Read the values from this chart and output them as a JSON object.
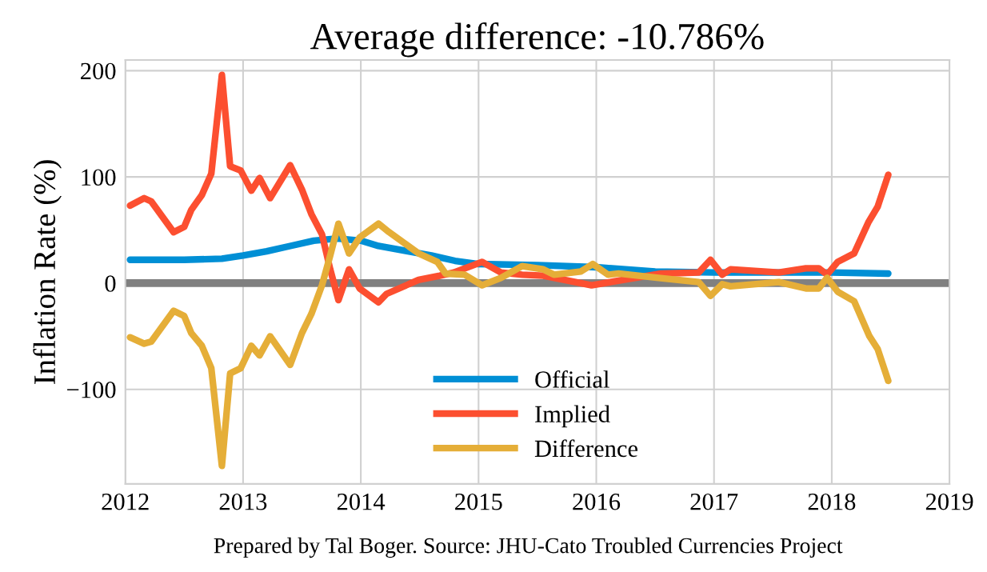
{
  "chart_data": {
    "type": "line",
    "title": "Average difference: -10.786%",
    "ylabel": "Inflation Rate (%)",
    "annotations": [
      "Prepared by Tal Boger. Source: JHU-Cato Troubled Currencies Project"
    ],
    "xlim": [
      2012,
      2019
    ],
    "xticks": [
      2012,
      2013,
      2014,
      2015,
      2016,
      2017,
      2018,
      2019
    ],
    "ylim": [
      -189,
      210
    ],
    "yticks": [
      {
        "value": -100,
        "label": "−100"
      },
      0,
      100,
      200
    ],
    "grid": true,
    "legend": "bottom",
    "line_style": "solid",
    "ref_lines": [
      {
        "axis": "y",
        "value": 0,
        "color": "#808080"
      }
    ],
    "series": [
      {
        "name": "Official",
        "color": "#008fd5",
        "x": [
          2012.04,
          2012.5,
          2012.82,
          2013.0,
          2013.2,
          2013.4,
          2013.6,
          2013.8,
          2014.0,
          2014.15,
          2014.4,
          2014.6,
          2014.8,
          2015.0,
          2015.5,
          2016.0,
          2016.5,
          2017.0,
          2017.5,
          2018.0,
          2018.48
        ],
        "values": [
          22,
          22,
          23,
          26,
          30,
          35,
          40,
          42,
          40,
          35,
          30,
          26,
          21,
          18,
          17,
          15,
          11,
          10,
          10,
          10,
          9
        ]
      },
      {
        "name": "Implied",
        "color": "#fc4f30",
        "x": [
          2012.04,
          2012.16,
          2012.22,
          2012.41,
          2012.5,
          2012.56,
          2012.65,
          2012.73,
          2012.82,
          2012.89,
          2012.98,
          2013.07,
          2013.14,
          2013.23,
          2013.4,
          2013.5,
          2013.58,
          2013.67,
          2013.74,
          2013.81,
          2013.9,
          2013.99,
          2014.15,
          2014.22,
          2014.49,
          2014.67,
          2014.79,
          2015.03,
          2015.19,
          2015.37,
          2015.55,
          2015.96,
          2016.55,
          2016.87,
          2016.97,
          2017.07,
          2017.14,
          2017.55,
          2017.78,
          2017.89,
          2017.96,
          2018.05,
          2018.19,
          2018.31,
          2018.39,
          2018.48
        ],
        "values": [
          73,
          80,
          77,
          48,
          53,
          69,
          83,
          103,
          196,
          110,
          106,
          87,
          99,
          80,
          111,
          88,
          65,
          46,
          13,
          -16,
          13,
          -5,
          -18,
          -10,
          3,
          7,
          10,
          20,
          10,
          8,
          7,
          -2,
          9,
          10,
          22,
          8,
          13,
          10,
          14,
          14,
          8,
          20,
          28,
          57,
          72,
          102
        ]
      },
      {
        "name": "Difference",
        "color": "#e5ae38",
        "x": [
          2012.04,
          2012.16,
          2012.22,
          2012.41,
          2012.5,
          2012.56,
          2012.65,
          2012.73,
          2012.82,
          2012.89,
          2012.98,
          2013.07,
          2013.14,
          2013.23,
          2013.4,
          2013.5,
          2013.58,
          2013.67,
          2013.74,
          2013.81,
          2013.9,
          2013.99,
          2014.15,
          2014.24,
          2014.49,
          2014.65,
          2014.72,
          2014.88,
          2015.03,
          2015.19,
          2015.37,
          2015.55,
          2015.64,
          2015.87,
          2015.97,
          2016.1,
          2016.19,
          2016.53,
          2016.87,
          2016.97,
          2017.07,
          2017.14,
          2017.55,
          2017.78,
          2017.89,
          2017.96,
          2018.05,
          2018.19,
          2018.32,
          2018.39,
          2018.48
        ],
        "values": [
          -51,
          -57,
          -55,
          -26,
          -31,
          -47,
          -59,
          -80,
          -172,
          -85,
          -80,
          -59,
          -68,
          -50,
          -77,
          -47,
          -29,
          -2,
          26,
          56,
          28,
          43,
          56,
          48,
          28,
          20,
          9,
          8,
          -2,
          5,
          16,
          13,
          8,
          11,
          18,
          8,
          9,
          5,
          1,
          -12,
          -1,
          -3,
          1,
          -5,
          -5,
          5,
          -8,
          -17,
          -50,
          -62,
          -92
        ]
      }
    ]
  }
}
